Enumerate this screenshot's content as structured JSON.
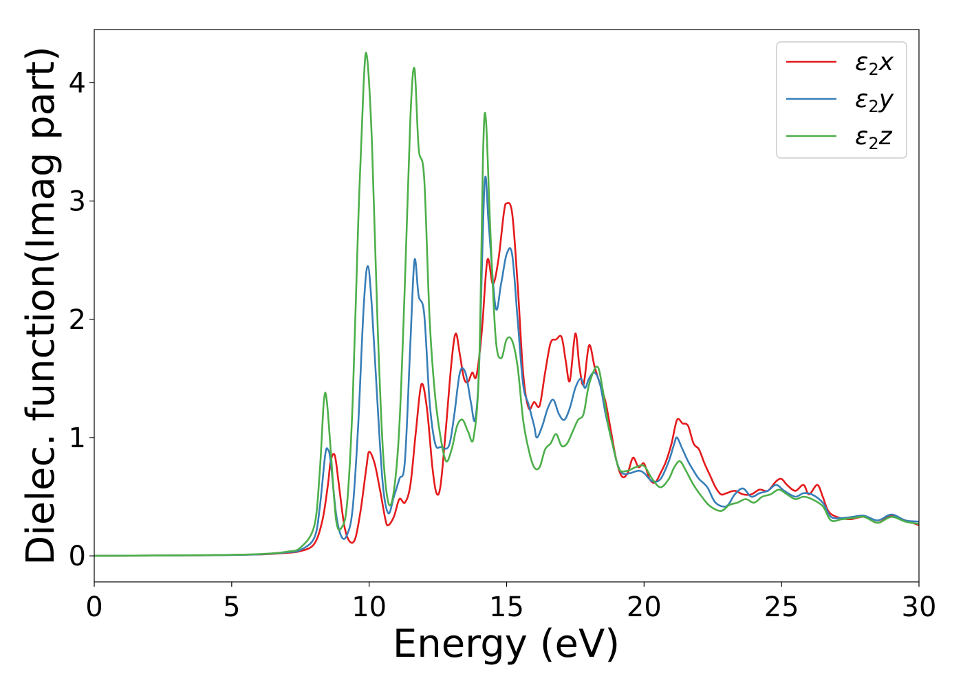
{
  "chart_data": {
    "type": "line",
    "xlabel": "Energy (eV)",
    "ylabel": "Dielec. function(Imag part)",
    "xlim": [
      0,
      30
    ],
    "ylim": [
      -0.22,
      4.45
    ],
    "xticks": [
      0,
      5,
      10,
      15,
      20,
      25,
      30
    ],
    "yticks": [
      0,
      1,
      2,
      3,
      4
    ],
    "grid": false,
    "legend_position": "top-right",
    "series": [
      {
        "name": "ε2x",
        "legend_base": "ε",
        "legend_sub": "2",
        "legend_suffix": "x",
        "color": "#e41a1c",
        "points": [
          [
            0,
            0
          ],
          [
            4,
            0.005
          ],
          [
            6,
            0.012
          ],
          [
            7,
            0.025
          ],
          [
            7.5,
            0.04
          ],
          [
            8,
            0.1
          ],
          [
            8.3,
            0.3
          ],
          [
            8.5,
            0.6
          ],
          [
            8.6,
            0.8
          ],
          [
            8.75,
            0.85
          ],
          [
            8.9,
            0.6
          ],
          [
            9.1,
            0.25
          ],
          [
            9.3,
            0.12
          ],
          [
            9.5,
            0.15
          ],
          [
            9.7,
            0.4
          ],
          [
            9.9,
            0.75
          ],
          [
            10,
            0.88
          ],
          [
            10.2,
            0.78
          ],
          [
            10.4,
            0.55
          ],
          [
            10.6,
            0.3
          ],
          [
            10.7,
            0.26
          ],
          [
            10.9,
            0.33
          ],
          [
            11.1,
            0.48
          ],
          [
            11.3,
            0.45
          ],
          [
            11.5,
            0.6
          ],
          [
            11.7,
            1.05
          ],
          [
            11.9,
            1.45
          ],
          [
            12.1,
            1.25
          ],
          [
            12.3,
            0.75
          ],
          [
            12.45,
            0.53
          ],
          [
            12.6,
            0.6
          ],
          [
            12.8,
            1.1
          ],
          [
            13,
            1.65
          ],
          [
            13.15,
            1.88
          ],
          [
            13.3,
            1.7
          ],
          [
            13.45,
            1.5
          ],
          [
            13.6,
            1.47
          ],
          [
            13.75,
            1.55
          ],
          [
            13.9,
            1.52
          ],
          [
            14.1,
            1.9
          ],
          [
            14.3,
            2.5
          ],
          [
            14.5,
            2.3
          ],
          [
            14.7,
            2.5
          ],
          [
            14.9,
            2.9
          ],
          [
            15,
            2.98
          ],
          [
            15.2,
            2.9
          ],
          [
            15.4,
            2.3
          ],
          [
            15.6,
            1.55
          ],
          [
            15.8,
            1.25
          ],
          [
            16,
            1.3
          ],
          [
            16.2,
            1.27
          ],
          [
            16.4,
            1.55
          ],
          [
            16.6,
            1.8
          ],
          [
            16.8,
            1.83
          ],
          [
            17,
            1.85
          ],
          [
            17.15,
            1.65
          ],
          [
            17.3,
            1.48
          ],
          [
            17.5,
            1.88
          ],
          [
            17.65,
            1.6
          ],
          [
            17.8,
            1.45
          ],
          [
            18,
            1.78
          ],
          [
            18.2,
            1.6
          ],
          [
            18.4,
            1.45
          ],
          [
            18.6,
            1.3
          ],
          [
            18.8,
            1.05
          ],
          [
            19,
            0.8
          ],
          [
            19.2,
            0.67
          ],
          [
            19.4,
            0.7
          ],
          [
            19.6,
            0.83
          ],
          [
            19.8,
            0.75
          ],
          [
            20,
            0.78
          ],
          [
            20.2,
            0.65
          ],
          [
            20.4,
            0.62
          ],
          [
            20.6,
            0.7
          ],
          [
            20.8,
            0.8
          ],
          [
            21,
            0.95
          ],
          [
            21.2,
            1.15
          ],
          [
            21.4,
            1.12
          ],
          [
            21.6,
            1.1
          ],
          [
            21.8,
            0.95
          ],
          [
            22,
            0.9
          ],
          [
            22.2,
            0.78
          ],
          [
            22.4,
            0.68
          ],
          [
            22.6,
            0.58
          ],
          [
            22.8,
            0.52
          ],
          [
            23,
            0.53
          ],
          [
            23.3,
            0.55
          ],
          [
            23.6,
            0.52
          ],
          [
            23.9,
            0.52
          ],
          [
            24.2,
            0.56
          ],
          [
            24.5,
            0.55
          ],
          [
            24.8,
            0.63
          ],
          [
            25,
            0.65
          ],
          [
            25.2,
            0.6
          ],
          [
            25.5,
            0.55
          ],
          [
            25.8,
            0.6
          ],
          [
            26,
            0.52
          ],
          [
            26.3,
            0.6
          ],
          [
            26.5,
            0.5
          ],
          [
            26.7,
            0.38
          ],
          [
            27,
            0.33
          ],
          [
            27.5,
            0.31
          ],
          [
            28,
            0.33
          ],
          [
            28.5,
            0.28
          ],
          [
            29,
            0.34
          ],
          [
            29.5,
            0.3
          ],
          [
            30,
            0.26
          ]
        ]
      },
      {
        "name": "ε2y",
        "legend_base": "ε",
        "legend_sub": "2",
        "legend_suffix": "y",
        "color": "#377eb8",
        "points": [
          [
            0,
            0
          ],
          [
            4,
            0.005
          ],
          [
            6,
            0.013
          ],
          [
            7,
            0.03
          ],
          [
            7.5,
            0.05
          ],
          [
            8,
            0.15
          ],
          [
            8.2,
            0.4
          ],
          [
            8.4,
            0.85
          ],
          [
            8.5,
            0.9
          ],
          [
            8.6,
            0.8
          ],
          [
            8.8,
            0.35
          ],
          [
            9,
            0.16
          ],
          [
            9.2,
            0.18
          ],
          [
            9.4,
            0.4
          ],
          [
            9.6,
            1.1
          ],
          [
            9.8,
            2.1
          ],
          [
            9.95,
            2.45
          ],
          [
            10.1,
            2.1
          ],
          [
            10.3,
            1.3
          ],
          [
            10.5,
            0.6
          ],
          [
            10.7,
            0.36
          ],
          [
            10.9,
            0.5
          ],
          [
            11.1,
            0.65
          ],
          [
            11.3,
            0.8
          ],
          [
            11.5,
            1.8
          ],
          [
            11.65,
            2.5
          ],
          [
            11.8,
            2.2
          ],
          [
            12,
            2.05
          ],
          [
            12.2,
            1.3
          ],
          [
            12.4,
            0.95
          ],
          [
            12.6,
            0.92
          ],
          [
            12.9,
            0.93
          ],
          [
            13.1,
            1.2
          ],
          [
            13.3,
            1.55
          ],
          [
            13.5,
            1.55
          ],
          [
            13.7,
            1.3
          ],
          [
            13.85,
            1.15
          ],
          [
            14,
            1.6
          ],
          [
            14.2,
            3.15
          ],
          [
            14.35,
            2.8
          ],
          [
            14.6,
            2.1
          ],
          [
            14.8,
            2.3
          ],
          [
            15,
            2.55
          ],
          [
            15.2,
            2.55
          ],
          [
            15.4,
            2.0
          ],
          [
            15.6,
            1.45
          ],
          [
            15.8,
            1.28
          ],
          [
            16,
            1.1
          ],
          [
            16.1,
            1.0
          ],
          [
            16.3,
            1.1
          ],
          [
            16.5,
            1.25
          ],
          [
            16.7,
            1.32
          ],
          [
            16.9,
            1.2
          ],
          [
            17.1,
            1.15
          ],
          [
            17.3,
            1.25
          ],
          [
            17.5,
            1.42
          ],
          [
            17.7,
            1.5
          ],
          [
            17.85,
            1.42
          ],
          [
            18,
            1.5
          ],
          [
            18.2,
            1.55
          ],
          [
            18.4,
            1.45
          ],
          [
            18.6,
            1.2
          ],
          [
            18.8,
            1.0
          ],
          [
            19,
            0.8
          ],
          [
            19.2,
            0.7
          ],
          [
            19.5,
            0.7
          ],
          [
            19.8,
            0.72
          ],
          [
            20,
            0.7
          ],
          [
            20.3,
            0.63
          ],
          [
            20.6,
            0.65
          ],
          [
            20.9,
            0.8
          ],
          [
            21.1,
            0.95
          ],
          [
            21.2,
            1.0
          ],
          [
            21.4,
            0.9
          ],
          [
            21.6,
            0.8
          ],
          [
            21.8,
            0.72
          ],
          [
            22,
            0.65
          ],
          [
            22.3,
            0.58
          ],
          [
            22.6,
            0.45
          ],
          [
            23,
            0.42
          ],
          [
            23.3,
            0.52
          ],
          [
            23.6,
            0.57
          ],
          [
            23.9,
            0.5
          ],
          [
            24.2,
            0.53
          ],
          [
            24.5,
            0.55
          ],
          [
            24.8,
            0.6
          ],
          [
            25.1,
            0.55
          ],
          [
            25.5,
            0.5
          ],
          [
            25.8,
            0.53
          ],
          [
            26.1,
            0.52
          ],
          [
            26.5,
            0.45
          ],
          [
            26.8,
            0.33
          ],
          [
            27.2,
            0.32
          ],
          [
            27.6,
            0.33
          ],
          [
            28,
            0.34
          ],
          [
            28.5,
            0.3
          ],
          [
            29,
            0.35
          ],
          [
            29.5,
            0.3
          ],
          [
            30,
            0.29
          ]
        ]
      },
      {
        "name": "ε2z",
        "legend_base": "ε",
        "legend_sub": "2",
        "legend_suffix": "z",
        "color": "#4daf4a",
        "points": [
          [
            0,
            0
          ],
          [
            4,
            0.006
          ],
          [
            6,
            0.015
          ],
          [
            7,
            0.035
          ],
          [
            7.5,
            0.07
          ],
          [
            8,
            0.25
          ],
          [
            8.2,
            0.7
          ],
          [
            8.35,
            1.3
          ],
          [
            8.45,
            1.33
          ],
          [
            8.6,
            0.9
          ],
          [
            8.8,
            0.3
          ],
          [
            9,
            0.24
          ],
          [
            9.2,
            0.45
          ],
          [
            9.4,
            1.3
          ],
          [
            9.6,
            2.8
          ],
          [
            9.8,
            4.0
          ],
          [
            9.92,
            4.22
          ],
          [
            10.1,
            3.5
          ],
          [
            10.3,
            2.0
          ],
          [
            10.5,
            0.9
          ],
          [
            10.7,
            0.45
          ],
          [
            10.9,
            0.55
          ],
          [
            11.1,
            1.1
          ],
          [
            11.3,
            2.3
          ],
          [
            11.5,
            3.7
          ],
          [
            11.65,
            4.12
          ],
          [
            11.8,
            3.45
          ],
          [
            12,
            3.2
          ],
          [
            12.2,
            2.0
          ],
          [
            12.4,
            1.35
          ],
          [
            12.6,
            1.0
          ],
          [
            12.8,
            0.8
          ],
          [
            13,
            0.9
          ],
          [
            13.2,
            1.1
          ],
          [
            13.4,
            1.15
          ],
          [
            13.6,
            1.05
          ],
          [
            13.8,
            1.0
          ],
          [
            14,
            1.6
          ],
          [
            14.15,
            3.45
          ],
          [
            14.25,
            3.68
          ],
          [
            14.4,
            2.8
          ],
          [
            14.6,
            1.85
          ],
          [
            14.8,
            1.67
          ],
          [
            15,
            1.83
          ],
          [
            15.2,
            1.82
          ],
          [
            15.4,
            1.6
          ],
          [
            15.6,
            1.15
          ],
          [
            15.8,
            0.9
          ],
          [
            16,
            0.75
          ],
          [
            16.2,
            0.75
          ],
          [
            16.4,
            0.9
          ],
          [
            16.6,
            0.95
          ],
          [
            16.8,
            1.03
          ],
          [
            17,
            0.93
          ],
          [
            17.2,
            0.95
          ],
          [
            17.4,
            1.05
          ],
          [
            17.6,
            1.15
          ],
          [
            17.8,
            1.2
          ],
          [
            18,
            1.45
          ],
          [
            18.3,
            1.6
          ],
          [
            18.5,
            1.4
          ],
          [
            18.7,
            1.1
          ],
          [
            18.9,
            0.9
          ],
          [
            19.1,
            0.73
          ],
          [
            19.4,
            0.72
          ],
          [
            19.7,
            0.75
          ],
          [
            20,
            0.76
          ],
          [
            20.3,
            0.65
          ],
          [
            20.6,
            0.58
          ],
          [
            20.9,
            0.65
          ],
          [
            21.1,
            0.75
          ],
          [
            21.3,
            0.8
          ],
          [
            21.5,
            0.73
          ],
          [
            21.8,
            0.6
          ],
          [
            22.1,
            0.5
          ],
          [
            22.4,
            0.42
          ],
          [
            22.8,
            0.38
          ],
          [
            23.1,
            0.43
          ],
          [
            23.4,
            0.45
          ],
          [
            23.7,
            0.48
          ],
          [
            24,
            0.45
          ],
          [
            24.3,
            0.5
          ],
          [
            24.6,
            0.52
          ],
          [
            24.9,
            0.56
          ],
          [
            25.2,
            0.52
          ],
          [
            25.5,
            0.48
          ],
          [
            25.8,
            0.5
          ],
          [
            26.1,
            0.48
          ],
          [
            26.5,
            0.42
          ],
          [
            26.8,
            0.3
          ],
          [
            27.2,
            0.31
          ],
          [
            27.6,
            0.32
          ],
          [
            28,
            0.33
          ],
          [
            28.5,
            0.28
          ],
          [
            29,
            0.33
          ],
          [
            29.5,
            0.29
          ],
          [
            30,
            0.27
          ]
        ]
      }
    ]
  }
}
